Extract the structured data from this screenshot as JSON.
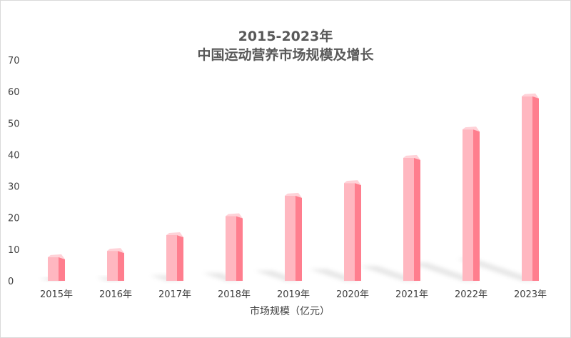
{
  "chart_data": {
    "type": "bar",
    "title": "2015-2023年",
    "subtitle": "中国运动营养市场规模及增长",
    "xlabel": "市场规模（亿元）",
    "ylabel": "",
    "categories": [
      "2015年",
      "2016年",
      "2017年",
      "2018年",
      "2019年",
      "2020年",
      "2021年",
      "2022年",
      "2023年"
    ],
    "values": [
      7.5,
      9.5,
      14.5,
      20.5,
      27,
      31,
      39,
      48,
      58.5
    ],
    "ylim": [
      0,
      70
    ],
    "yticks": [
      0,
      10,
      20,
      30,
      40,
      50,
      60,
      70
    ],
    "grid": false,
    "legend": "none",
    "colors": {
      "bar_front": "#ffb7c0",
      "bar_side": "#ff7e8e",
      "bar_top": "#ffd2d8",
      "shadow": "#c8c8c8"
    }
  }
}
